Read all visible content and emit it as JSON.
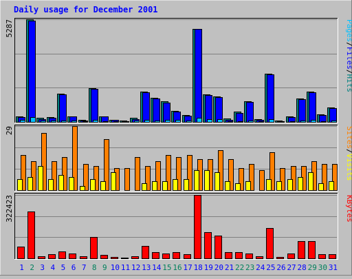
{
  "chart_data": {
    "type": "bar",
    "title": "Daily usage for December 2001",
    "categories": [
      "1",
      "2",
      "3",
      "4",
      "5",
      "6",
      "7",
      "8",
      "9",
      "10",
      "11",
      "12",
      "13",
      "14",
      "15",
      "16",
      "17",
      "18",
      "19",
      "20",
      "21",
      "22",
      "23",
      "24",
      "25",
      "26",
      "27",
      "28",
      "29",
      "30",
      "31"
    ],
    "weekend_days": [
      "2",
      "8",
      "9",
      "15",
      "16",
      "22",
      "23",
      "29",
      "30"
    ],
    "panels": [
      {
        "id": "top",
        "max_label": "5287",
        "ylim": [
          0,
          5287
        ],
        "legend": [
          {
            "text": "Pages",
            "color": "#00c0ff"
          },
          {
            "text": "/",
            "color": "#000000"
          },
          {
            "text": "Files",
            "color": "#0000ff"
          },
          {
            "text": "/",
            "color": "#000000"
          },
          {
            "text": "Hits",
            "color": "#008080"
          }
        ],
        "series": [
          {
            "name": "Hits",
            "color": "#008080",
            "values": [
              300,
              5287,
              200,
              250,
              1450,
              300,
              100,
              1750,
              300,
              120,
              60,
              200,
              1550,
              1250,
              1050,
              550,
              350,
              4800,
              1430,
              1320,
              170,
              520,
              1080,
              150,
              2500,
              70,
              300,
              1220,
              1550,
              380,
              750
            ]
          },
          {
            "name": "Files",
            "color": "#0000ff",
            "values": [
              250,
              5220,
              150,
              200,
              1420,
              270,
              70,
              1720,
              270,
              90,
              30,
              150,
              1510,
              1220,
              1000,
              520,
              310,
              4780,
              1390,
              1290,
              120,
              470,
              1040,
              100,
              2440,
              40,
              260,
              1180,
              1510,
              350,
              700
            ]
          },
          {
            "name": "Pages",
            "color": "#00c0ff",
            "values": [
              100,
              250,
              60,
              80,
              80,
              60,
              20,
              90,
              50,
              25,
              10,
              55,
              110,
              55,
              90,
              120,
              70,
              230,
              130,
              140,
              40,
              50,
              70,
              20,
              150,
              10,
              40,
              70,
              90,
              40,
              60
            ]
          }
        ]
      },
      {
        "id": "middle",
        "max_label": "29",
        "ylim": [
          0,
          29
        ],
        "legend": [
          {
            "text": "Sites",
            "color": "#ff8000"
          },
          {
            "text": "/",
            "color": "#000000"
          },
          {
            "text": "Visits",
            "color": "#ffff00"
          }
        ],
        "series": [
          {
            "name": "Visits",
            "color": "#ff8000",
            "values": [
              16,
              13,
              26,
              13,
              15,
              29,
              12,
              11,
              23,
              10,
              10,
              15,
              11,
              13,
              16,
              15,
              16,
              14,
              14,
              18,
              14,
              10,
              12,
              9,
              17,
              10,
              11,
              11,
              13,
              12,
              12
            ]
          },
          {
            "name": "Sites",
            "color": "#ffff00",
            "values": [
              5,
              6,
              11,
              5,
              7,
              6,
              2,
              5,
              4,
              8,
              0,
              0,
              3,
              4,
              4,
              5,
              5,
              9,
              9,
              8,
              4,
              3,
              4,
              0,
              5,
              4,
              5,
              6,
              8,
              3,
              4
            ]
          }
        ]
      },
      {
        "id": "bottom",
        "max_label": "322423",
        "ylim": [
          0,
          322423
        ],
        "legend": [
          {
            "text": "KBytes",
            "color": "#ff0000"
          }
        ],
        "series": [
          {
            "name": "KBytes",
            "color": "#ff0000",
            "values": [
              60000,
              240000,
              12000,
              20000,
              35000,
              25000,
              10000,
              110000,
              16000,
              7000,
              4000,
              9000,
              63000,
              33000,
              25000,
              30000,
              20000,
              322423,
              133000,
              115000,
              31000,
              30000,
              25000,
              12000,
              155000,
              6000,
              25000,
              87000,
              87000,
              22000,
              20000
            ]
          }
        ]
      }
    ],
    "colors": {
      "background": "#c0c0c0",
      "title": "#0000ff",
      "weekday_label": "#0000ff",
      "weekend_label": "#00805c"
    }
  }
}
